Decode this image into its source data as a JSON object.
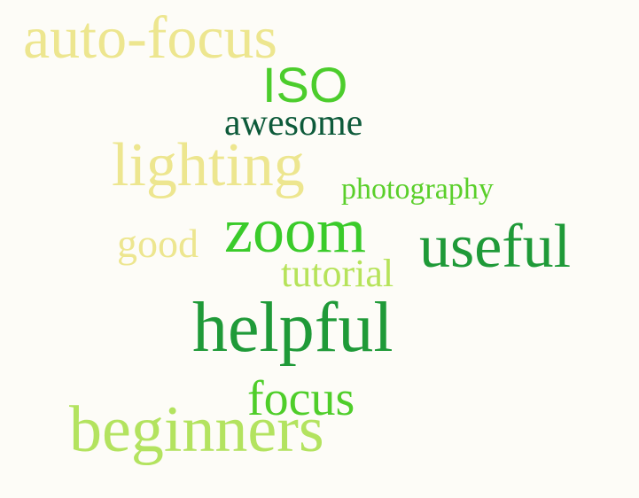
{
  "background": "#fdfcf7",
  "words": [
    {
      "text": "auto-focus",
      "color": "#ede68f"
    },
    {
      "text": "ISO",
      "color": "#4ccd2c"
    },
    {
      "text": "awesome",
      "color": "#0d5a3a"
    },
    {
      "text": "lighting",
      "color": "#ede68f"
    },
    {
      "text": "photography",
      "color": "#5acf2a"
    },
    {
      "text": "zoom",
      "color": "#3acb2a"
    },
    {
      "text": "good",
      "color": "#ede68f"
    },
    {
      "text": "useful",
      "color": "#1f9a38"
    },
    {
      "text": "tutorial",
      "color": "#b6e35a"
    },
    {
      "text": "helpful",
      "color": "#1f9a38"
    },
    {
      "text": "focus",
      "color": "#4fce2a"
    },
    {
      "text": "beginners",
      "color": "#b3e35f"
    }
  ]
}
